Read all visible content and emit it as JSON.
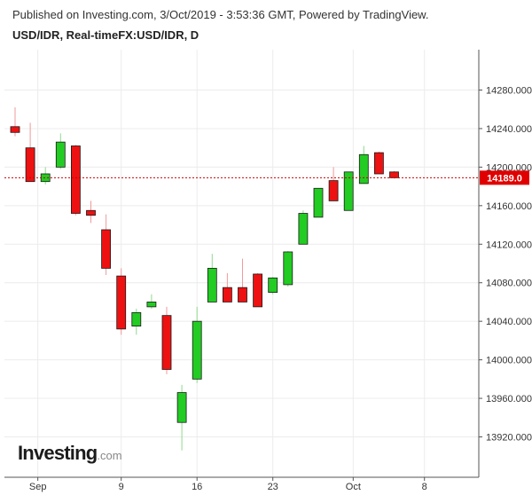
{
  "header": {
    "published": "Published on Investing.com, 3/Oct/2019 - 3:53:36 GMT, Powered by TradingView.",
    "title": "USD/IDR, Real-timeFX:USD/IDR, D"
  },
  "logo": {
    "brand": "Investing",
    "domain": ".com"
  },
  "colors": {
    "up": "#22cc22",
    "down": "#ee1111",
    "priceLine": "#cc0000",
    "priceTag": "#e00000",
    "grid": "#ececec"
  },
  "chart_data": {
    "type": "candlestick",
    "title": "USD/IDR, Real-timeFX:USD/IDR, D",
    "ylim": [
      13890,
      14310
    ],
    "y_ticks": [
      13920,
      13960,
      14000,
      14040,
      14080,
      14120,
      14160,
      14200,
      14240,
      14280
    ],
    "y_tick_labels": [
      "13920.000",
      "13960.000",
      "14000.000",
      "14040.000",
      "14080.000",
      "14120.000",
      "14160.000",
      "14200.000",
      "14240.000",
      "14280.000"
    ],
    "x_ticks": [
      {
        "label": "Sep",
        "index": 1.5
      },
      {
        "label": "9",
        "index": 7
      },
      {
        "label": "16",
        "index": 12
      },
      {
        "label": "23",
        "index": 17
      },
      {
        "label": "Oct",
        "index": 22.3
      },
      {
        "label": "8",
        "index": 27
      }
    ],
    "last_price": 14189,
    "last_price_label": "14189.0",
    "grid": true,
    "candles": [
      {
        "open": 14242,
        "high": 14262,
        "low": 14232,
        "close": 14236
      },
      {
        "open": 14220,
        "high": 14246,
        "low": 14185,
        "close": 14185
      },
      {
        "open": 14185,
        "high": 14200,
        "low": 14182,
        "close": 14193
      },
      {
        "open": 14200,
        "high": 14235,
        "low": 14198,
        "close": 14226
      },
      {
        "open": 14222,
        "high": 14223,
        "low": 14150,
        "close": 14152
      },
      {
        "open": 14155,
        "high": 14165,
        "low": 14142,
        "close": 14150
      },
      {
        "open": 14135,
        "high": 14151,
        "low": 14088,
        "close": 14095
      },
      {
        "open": 14087,
        "high": 14095,
        "low": 14026,
        "close": 14032
      },
      {
        "open": 14035,
        "high": 14053,
        "low": 14026,
        "close": 14049
      },
      {
        "open": 14055,
        "high": 14068,
        "low": 14053,
        "close": 14060
      },
      {
        "open": 14046,
        "high": 14055,
        "low": 13985,
        "close": 13990
      },
      {
        "open": 13935,
        "high": 13974,
        "low": 13906,
        "close": 13966
      },
      {
        "open": 13980,
        "high": 14055,
        "low": 13976,
        "close": 14040
      },
      {
        "open": 14060,
        "high": 14110,
        "low": 14060,
        "close": 14095
      },
      {
        "open": 14075,
        "high": 14090,
        "low": 14060,
        "close": 14060
      },
      {
        "open": 14075,
        "high": 14105,
        "low": 14060,
        "close": 14060
      },
      {
        "open": 14089,
        "high": 14090,
        "low": 14055,
        "close": 14055
      },
      {
        "open": 14070,
        "high": 14086,
        "low": 14068,
        "close": 14085
      },
      {
        "open": 14078,
        "high": 14113,
        "low": 14076,
        "close": 14112
      },
      {
        "open": 14120,
        "high": 14155,
        "low": 14120,
        "close": 14152
      },
      {
        "open": 14148,
        "high": 14178,
        "low": 14148,
        "close": 14178
      },
      {
        "open": 14186,
        "high": 14200,
        "low": 14165,
        "close": 14165
      },
      {
        "open": 14155,
        "high": 14195,
        "low": 14155,
        "close": 14195
      },
      {
        "open": 14183,
        "high": 14222,
        "low": 14183,
        "close": 14213
      },
      {
        "open": 14215,
        "high": 14216,
        "low": 14193,
        "close": 14193
      },
      {
        "open": 14195,
        "high": 14196,
        "low": 14188,
        "close": 14189
      }
    ]
  }
}
